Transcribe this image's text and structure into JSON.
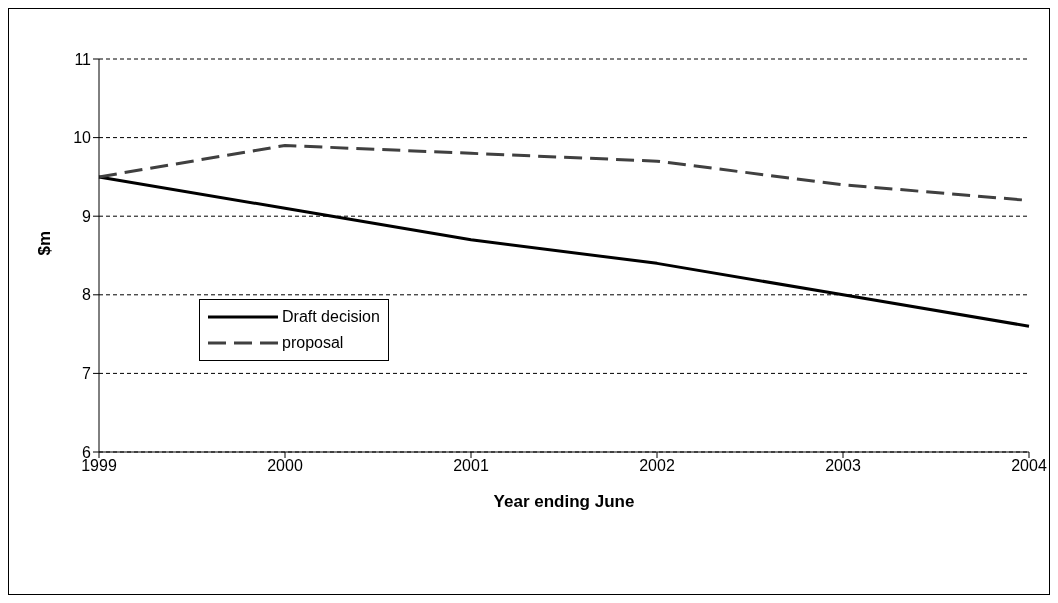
{
  "chart_data": {
    "type": "line",
    "xlabel": "Year ending June",
    "ylabel": "$m",
    "categories": [
      "1999",
      "2000",
      "2001",
      "2002",
      "2003",
      "2004"
    ],
    "series": [
      {
        "name": "Draft decision",
        "color": "#000000",
        "values": [
          9.5,
          9.1,
          8.7,
          8.4,
          8.0,
          7.6
        ],
        "line_style": "solid"
      },
      {
        "name": "proposal",
        "color": "#404040",
        "values": [
          9.5,
          9.9,
          9.8,
          9.7,
          9.4,
          9.2
        ],
        "line_style": "dashed"
      }
    ],
    "ylim": [
      6,
      11
    ],
    "yticks": [
      6,
      7,
      8,
      9,
      10,
      11
    ],
    "grid": "y",
    "legend": "left",
    "marker": "none"
  }
}
